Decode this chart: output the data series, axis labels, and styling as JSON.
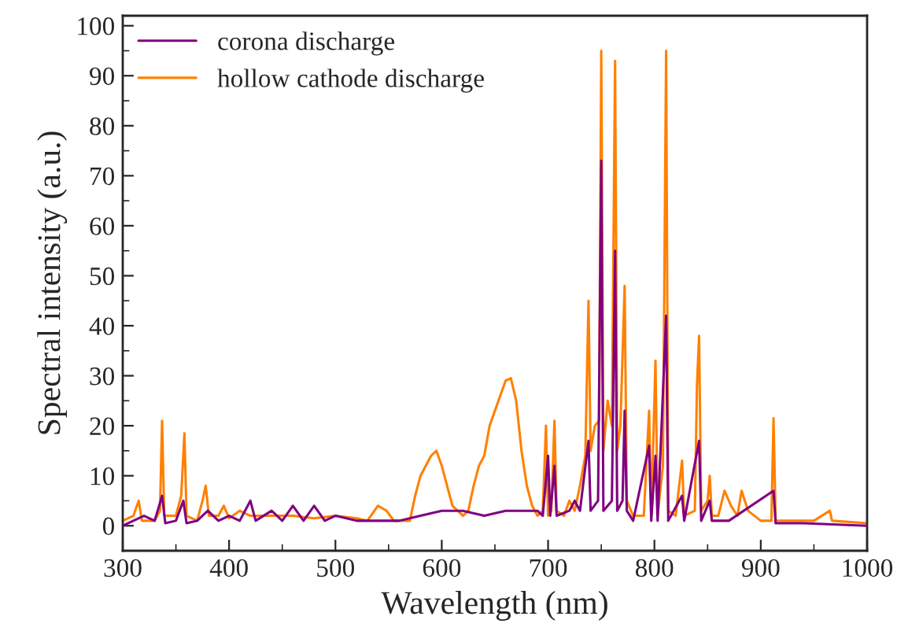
{
  "chart_data": {
    "type": "line",
    "xlabel": "Wavelength (nm)",
    "ylabel": "Spectral intensity (a.u.)",
    "xlim": [
      300,
      1000
    ],
    "ylim": [
      -5,
      102
    ],
    "xticks": [
      300,
      400,
      500,
      600,
      700,
      800,
      900,
      1000
    ],
    "yticks": [
      0,
      10,
      20,
      30,
      40,
      50,
      60,
      70,
      80,
      90,
      100
    ],
    "grid": false,
    "legend": "top left",
    "marker": "none",
    "line_style": "solid",
    "series": [
      {
        "name": "corona discharge",
        "color": "#800080",
        "x": [
          300,
          310,
          320,
          330,
          337,
          340,
          350,
          357,
          360,
          370,
          380,
          390,
          400,
          410,
          420,
          425,
          440,
          450,
          460,
          470,
          480,
          490,
          500,
          520,
          540,
          560,
          580,
          600,
          620,
          640,
          660,
          680,
          690,
          695,
          700,
          702,
          706,
          708,
          720,
          725,
          730,
          738,
          740,
          747,
          750,
          752,
          760,
          763,
          765,
          770,
          772,
          774,
          780,
          795,
          797,
          801,
          803,
          811,
          813,
          826,
          828,
          842,
          844,
          852,
          854,
          870,
          912,
          914,
          940,
          1000
        ],
        "values": [
          0,
          1,
          2,
          1,
          6,
          0.5,
          1,
          5,
          0.5,
          1,
          3,
          1,
          2,
          1,
          5,
          1,
          3,
          1,
          4,
          1,
          4,
          1,
          2,
          1,
          1,
          1,
          2,
          3,
          3,
          2,
          3,
          3,
          3,
          2,
          14,
          2,
          12,
          2,
          3,
          5,
          3,
          17,
          3,
          5,
          73,
          3,
          5,
          55,
          3,
          5,
          23,
          3,
          1,
          16,
          1,
          14,
          1,
          42,
          1,
          6,
          1,
          17,
          1,
          5,
          1,
          1,
          7,
          0.5,
          0.5,
          0
        ]
      },
      {
        "name": "hollow cathode discharge",
        "color": "#ff8000",
        "x": [
          300,
          310,
          315,
          318,
          330,
          335,
          337,
          339,
          350,
          355,
          358,
          360,
          370,
          375,
          378,
          381,
          390,
          395,
          400,
          410,
          420,
          440,
          460,
          480,
          500,
          520,
          530,
          540,
          548,
          555,
          570,
          575,
          580,
          585,
          590,
          595,
          600,
          605,
          610,
          615,
          620,
          625,
          630,
          635,
          640,
          645,
          650,
          655,
          660,
          665,
          670,
          675,
          680,
          685,
          690,
          695,
          698,
          700,
          703,
          706,
          708,
          715,
          720,
          725,
          730,
          735,
          738,
          740,
          744,
          748,
          750,
          752,
          756,
          760,
          763,
          765,
          768,
          772,
          774,
          780,
          790,
          795,
          797,
          801,
          803,
          808,
          811,
          813,
          820,
          826,
          828,
          838,
          840,
          842,
          844,
          850,
          852,
          854,
          860,
          866,
          872,
          878,
          882,
          888,
          900,
          910,
          912,
          914,
          930,
          950,
          965,
          967,
          1000
        ],
        "values": [
          1,
          2,
          5,
          1,
          1,
          3,
          21,
          2,
          2,
          6,
          18.5,
          2,
          1,
          5,
          8,
          2,
          2,
          4,
          1.5,
          3,
          2,
          2,
          2,
          1.5,
          2,
          1.5,
          1,
          4,
          3,
          1,
          1,
          6,
          10,
          12,
          14,
          15,
          12,
          8,
          4,
          3,
          2,
          3,
          8,
          12,
          14,
          20,
          23,
          26,
          29,
          29.5,
          25,
          15,
          8,
          4,
          2,
          3,
          20,
          2,
          3,
          21,
          3,
          2,
          5,
          3,
          8,
          14,
          45,
          15,
          20,
          21,
          95,
          15,
          25,
          20,
          93,
          15,
          20,
          48,
          5,
          2,
          2,
          23,
          2,
          33,
          2,
          12,
          95,
          3,
          2,
          13,
          2,
          3,
          28,
          38,
          3,
          5,
          10,
          2,
          2,
          7,
          4,
          2,
          7,
          3,
          1,
          1,
          21.5,
          1,
          1,
          1,
          3,
          1,
          0.5
        ]
      }
    ]
  }
}
